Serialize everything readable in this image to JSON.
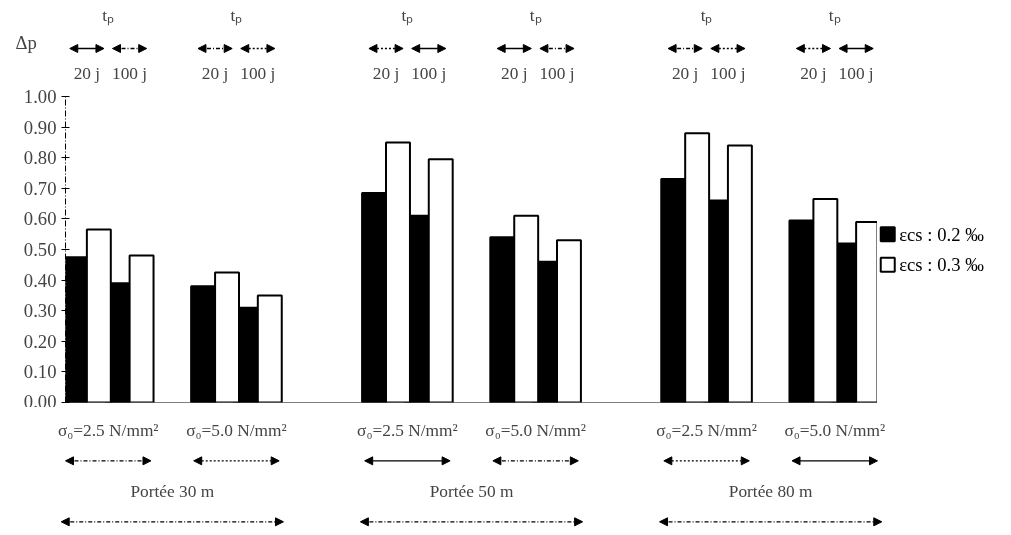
{
  "chart_data": {
    "type": "bar",
    "ylabel": "Δp",
    "categories": [
      "20 j",
      "100 j",
      null,
      "20 j",
      "100 j",
      null,
      null,
      "20 j",
      "100 j",
      null,
      "20 j",
      "100 j",
      null,
      null,
      "20 j",
      "100 j",
      null,
      "20 j",
      "100 j"
    ],
    "series": [
      {
        "name": "εcs : 0.2 ‰",
        "color": "#000000",
        "values": [
          0.475,
          0.39,
          null,
          0.38,
          0.31,
          null,
          null,
          0.685,
          0.61,
          null,
          0.54,
          0.46,
          null,
          null,
          0.73,
          0.66,
          null,
          0.595,
          0.52
        ]
      },
      {
        "name": "εcs : 0.3 ‰",
        "color": "#ffffff",
        "values": [
          0.565,
          0.48,
          null,
          0.425,
          0.35,
          null,
          null,
          0.85,
          0.795,
          null,
          0.61,
          0.53,
          null,
          null,
          0.88,
          0.84,
          null,
          0.665,
          0.59
        ]
      }
    ],
    "ylim": [
      0,
      1
    ],
    "yticks": [
      {
        "value": 0,
        "label": "0.00"
      },
      {
        "value": 0.1,
        "label": "0.10"
      },
      {
        "value": 0.2,
        "label": "0.20"
      },
      {
        "value": 0.3,
        "label": "0.30"
      },
      {
        "value": 0.4,
        "label": "0.40"
      },
      {
        "value": 0.5,
        "label": "0.50"
      },
      {
        "value": 0.6,
        "label": "0.60"
      },
      {
        "value": 0.7,
        "label": "0.70"
      },
      {
        "value": 0.8,
        "label": "0.80"
      },
      {
        "value": 0.9,
        "label": "0.90"
      },
      {
        "value": 1,
        "label": "1.00"
      }
    ],
    "grid": false,
    "legend": "right",
    "annotations": [
      "tₚ",
      "tₚ",
      "tₚ",
      "tₚ",
      "tₚ",
      "tₚ",
      "σ₀=2.5 N/mm²",
      "σ₀=5.0 N/mm²",
      "σ₀=2.5 N/mm²",
      "σ₀=5.0 N/mm²",
      "σ₀=2.5 N/mm²",
      "σ₀=5.0 N/mm²",
      "Portée 30 m",
      "Portée 50 m",
      "Portée 80 m"
    ]
  }
}
